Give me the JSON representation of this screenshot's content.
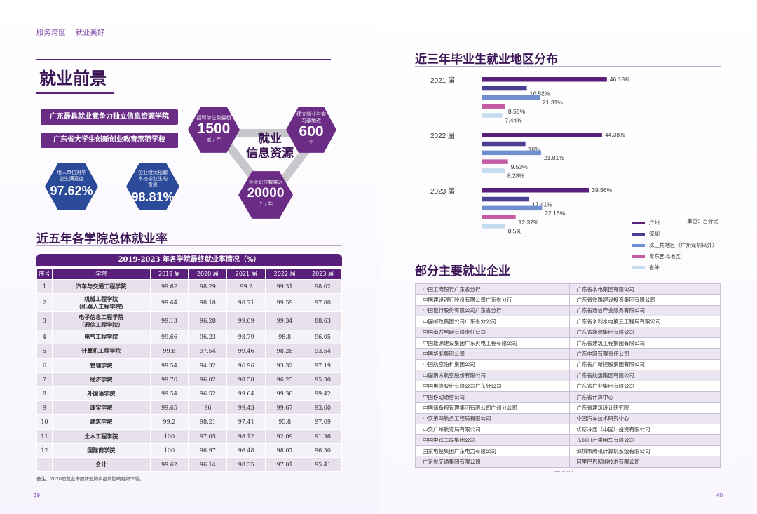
{
  "left": {
    "nav": [
      "服务湾区",
      "就业美好"
    ],
    "title": "就业前景",
    "badges": [
      "广东最具就业竞争力独立信息资源学院",
      "广东省大学生创新创业教育示范学校"
    ],
    "stats": {
      "satisfaction": {
        "label": "用人单位对毕业生满意度",
        "value": "97.62%"
      },
      "willingness": {
        "label": "企业继续招聘本校毕业生的意愿",
        "value": "98.81%"
      },
      "employers": {
        "label": "招聘单位数量超",
        "value": "1500",
        "unit": "家 / 年"
      },
      "bases": {
        "label": "建立就业与实习基地近",
        "value": "600",
        "unit": "个"
      },
      "jobs": {
        "label": "企业职位数量近",
        "value": "20000",
        "unit": "个 / 年"
      },
      "center": [
        "就业",
        "信息资源"
      ]
    },
    "section_title": "近五年各学院总体就业率",
    "table_title": "2019-2023 年各学院最终就业率情况（%）",
    "table_headers": [
      "序号",
      "学院",
      "2019 届",
      "2020 届",
      "2021 届",
      "2022 届",
      "2023 届"
    ],
    "table_rows": [
      [
        "1",
        "汽车与交通工程学院",
        "99.62",
        "98.29",
        "99.2",
        "99.31",
        "98.02"
      ],
      [
        "2",
        "机械工程学院\n（机器人工程学院）",
        "99.64",
        "98.18",
        "98.71",
        "99.59",
        "97.80"
      ],
      [
        "3",
        "电子信息工程学院\n（通信工程学院）",
        "99.13",
        "96.28",
        "99.09",
        "99.34",
        "88.63"
      ],
      [
        "4",
        "电气工程学院",
        "99.66",
        "96.23",
        "98.79",
        "98.8",
        "96.05"
      ],
      [
        "5",
        "计算机工程学院",
        "99.8",
        "97.54",
        "99.46",
        "98.28",
        "93.54"
      ],
      [
        "6",
        "管理学院",
        "99.54",
        "94.32",
        "96.96",
        "93.32",
        "97.19"
      ],
      [
        "7",
        "经济学院",
        "99.76",
        "96.02",
        "98.58",
        "96.25",
        "95.30"
      ],
      [
        "8",
        "外国语学院",
        "99.54",
        "96.52",
        "99.64",
        "99.38",
        "99.42"
      ],
      [
        "9",
        "珠宝学院",
        "99.65",
        "96",
        "99.43",
        "99.67",
        "93.60"
      ],
      [
        "10",
        "建筑学院",
        "99.2",
        "98.21",
        "97.41",
        "95.8",
        "97.69"
      ],
      [
        "11",
        "土木工程学院",
        "100",
        "97.05",
        "98.12",
        "92.09",
        "91.36"
      ],
      [
        "12",
        "国际商学院",
        "100",
        "96.97",
        "96.48",
        "98.07",
        "96.30"
      ],
      [
        "",
        "合计",
        "99.62",
        "96.14",
        "98.35",
        "97.01",
        "95.41"
      ]
    ],
    "note": "备注：2020届就业率因新冠肺炎疫情影响有所下滑。",
    "page_number": "39"
  },
  "right": {
    "chart_title": "近三年毕业生就业地区分布",
    "chart_unit": "单位：百分比",
    "chart_data": {
      "type": "bar",
      "orientation": "horizontal",
      "title": "近三年毕业生就业地区分布",
      "unit": "百分比",
      "groups": [
        "2021 届",
        "2022 届",
        "2023 届"
      ],
      "series": [
        {
          "name": "广州",
          "color": "#5a1f7a",
          "values": [
            46.18,
            44.38,
            39.56
          ]
        },
        {
          "name": "深圳",
          "color": "#4a3f91",
          "values": [
            16.52,
            16,
            17.41
          ]
        },
        {
          "name": "珠三角地区（广州深圳以外）",
          "color": "#6f8fd0",
          "values": [
            21.31,
            21.81,
            22.16
          ]
        },
        {
          "name": "粤东西北地区",
          "color": "#c45ba3",
          "values": [
            8.55,
            9.53,
            12.37
          ]
        },
        {
          "name": "省外",
          "color": "#c4dcef",
          "values": [
            7.44,
            8.28,
            8.5
          ]
        }
      ],
      "value_labels": [
        [
          "46.18%",
          "16.52%",
          "21.31%",
          "8.55%",
          "7.44%"
        ],
        [
          "44.38%",
          "16%",
          "21.81%",
          "9.53%",
          "8.28%"
        ],
        [
          "39.56%",
          "17.41%",
          "22.16%",
          "12.37%",
          "8.5%"
        ]
      ]
    },
    "enterprise_title": "部分主要就业企业",
    "enterprises": [
      [
        "中国工商银行广东省分行",
        "广东省水电集团有限公司"
      ],
      [
        "中国建设银行股份有限公司广东省分行",
        "广东省铁路建设投资集团有限公司"
      ],
      [
        "中国银行股份有限公司广东省分行",
        "广东省通信产业服务有限公司"
      ],
      [
        "中国邮政集团公司广东省分公司",
        "广东省水利水电第三工程局有限公司"
      ],
      [
        "中国南方电网有限责任公司",
        "广东省能源集团有限公司"
      ],
      [
        "中国能源建设集团广东火电工程有限公司",
        "广东省建筑工程集团有限公司"
      ],
      [
        "中国华能集团公司",
        "广东电网有限责任公司"
      ],
      [
        "中国航空油料集团公司",
        "广东省广新控股集团有限公司"
      ],
      [
        "中国南方航空股份有限公司",
        "广东省航运集团有限公司"
      ],
      [
        "中国电信股份有限公司广东分公司",
        "广东省广业集团有限公司"
      ],
      [
        "中国移动通信公司",
        "广东省计算中心"
      ],
      [
        "中国储备粮管理集团有限公司广州分公司",
        "广东省建筑设计研究院"
      ],
      [
        "中交第四航务工程局有限公司",
        "中国汽车技术研究中心"
      ],
      [
        "中交广州航道局有限公司",
        "优尼冲压（中国）投资有限公司"
      ],
      [
        "中国中铁二局集团公司",
        "东风日产乘用车有限公司"
      ],
      [
        "国家电投集团广东电力有限公司",
        "深圳市腾讯计算机系统有限公司"
      ],
      [
        "广东省交通集团有限公司",
        "阿里巴巴网络技术有限公司"
      ]
    ],
    "ellipsis": "…………",
    "page_number": "40"
  }
}
